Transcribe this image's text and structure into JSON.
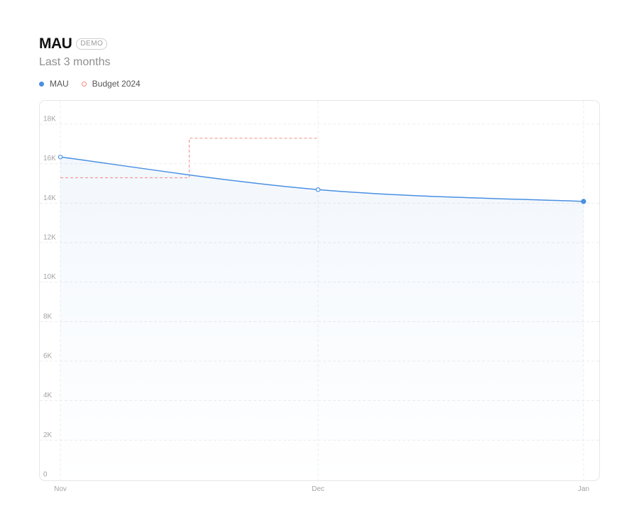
{
  "header": {
    "title": "MAU",
    "badge": "DEMO",
    "subtitle": "Last 3 months"
  },
  "legend": [
    {
      "label": "MAU",
      "color": "#4a90e2",
      "style": "filled-dot"
    },
    {
      "label": "Budget 2024",
      "color": "#f28b82",
      "style": "hollow-dot"
    }
  ],
  "chart_data": {
    "type": "line",
    "title": "MAU",
    "subtitle": "Last 3 months",
    "categories": [
      "Nov",
      "Dec",
      "Jan"
    ],
    "x": [
      0,
      1,
      2.03
    ],
    "series": [
      {
        "name": "MAU",
        "type": "line",
        "color": "#4a90e2",
        "area": true,
        "points": [
          {
            "x": 0,
            "y": 16050
          },
          {
            "x": 1,
            "y": 14400
          },
          {
            "x": 2.03,
            "y": 13800
          }
        ]
      },
      {
        "name": "Budget 2024",
        "type": "step",
        "color": "#f28b82",
        "dashed": true,
        "steps": [
          {
            "x0": 0,
            "x1": 0.5,
            "y": 15000
          },
          {
            "x0": 0.5,
            "x1": 1,
            "y": 17000
          }
        ]
      }
    ],
    "ylim": [
      0,
      18000
    ],
    "yticks": [
      0,
      2000,
      4000,
      6000,
      8000,
      10000,
      12000,
      14000,
      16000,
      18000
    ],
    "ytick_labels": [
      "0",
      "2K",
      "4K",
      "6K",
      "8K",
      "10K",
      "12K",
      "14K",
      "16K",
      "18K"
    ],
    "grid": true,
    "legend_position": "top-left",
    "xlabel": "",
    "ylabel": ""
  }
}
